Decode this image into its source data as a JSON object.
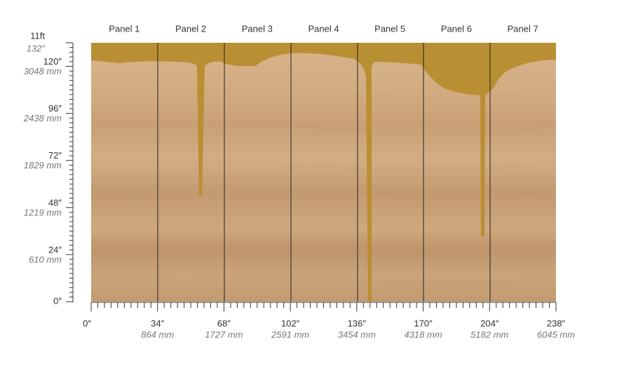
{
  "panels": [
    "Panel 1",
    "Panel 2",
    "Panel 3",
    "Panel 4",
    "Panel 5",
    "Panel 6",
    "Panel 7"
  ],
  "y_axis": {
    "top": {
      "label": "11ft",
      "sub": "132″"
    },
    "labels": [
      {
        "in": "120″",
        "mm": "3048 mm"
      },
      {
        "in": "96″",
        "mm": "2438 mm"
      },
      {
        "in": "72″",
        "mm": "1829 mm"
      },
      {
        "in": "48″",
        "mm": "1219 mm"
      },
      {
        "in": "24″",
        "mm": "610 mm"
      },
      {
        "in": "0″"
      }
    ]
  },
  "x_axis": {
    "labels": [
      {
        "in": "0″"
      },
      {
        "in": "34″",
        "mm": "864 mm"
      },
      {
        "in": "68″",
        "mm": "1727 mm"
      },
      {
        "in": "102″",
        "mm": "2591 mm"
      },
      {
        "in": "136″",
        "mm": "3454 mm"
      },
      {
        "in": "170″",
        "mm": "4318 mm"
      },
      {
        "in": "204″",
        "mm": "5182 mm"
      },
      {
        "in": "238″",
        "mm": "6045 mm"
      }
    ]
  }
}
